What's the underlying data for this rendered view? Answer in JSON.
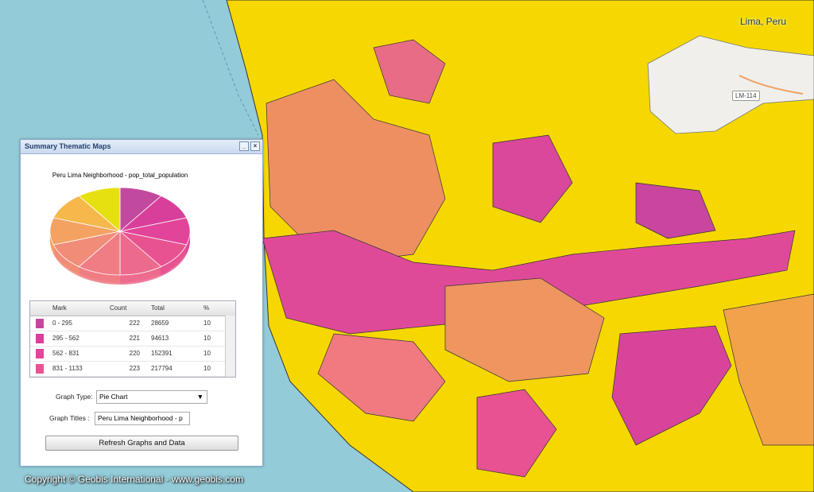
{
  "map": {
    "place_label": "Lima, Peru",
    "road_label": "LM-114",
    "copyright": "Copyright © Geobis International - www.geobis.com"
  },
  "panel": {
    "title": "Summary Thematic Maps",
    "chart": {
      "type": "pie",
      "title": "Peru Lima Neighborhood - pop_total_population",
      "values": [
        10,
        10,
        10,
        10,
        10,
        10,
        10,
        10,
        10,
        10
      ],
      "colors": [
        "#c24a9e",
        "#d83f9a",
        "#e2449a",
        "#e85290",
        "#ec6b8c",
        "#f07c84",
        "#f08c78",
        "#f4a262",
        "#f6b84a",
        "#e6e010"
      ]
    },
    "table": {
      "columns": [
        "Mark",
        "Count",
        "Total",
        "%"
      ],
      "rows": [
        [
          "0 - 295",
          222,
          28659,
          10
        ],
        [
          "295 - 562",
          221,
          94613,
          10
        ],
        [
          "562 - 831",
          220,
          152391,
          10
        ],
        [
          "831 - 1133",
          223,
          217794,
          10
        ]
      ]
    },
    "graph_type_label": "Graph Type:",
    "graph_type": "Pie Chart",
    "graph_titles_label": "Graph Titles :",
    "graph_titles": "Peru Lima  Neighborhood - p",
    "button": "Refresh Graphs and Data"
  }
}
